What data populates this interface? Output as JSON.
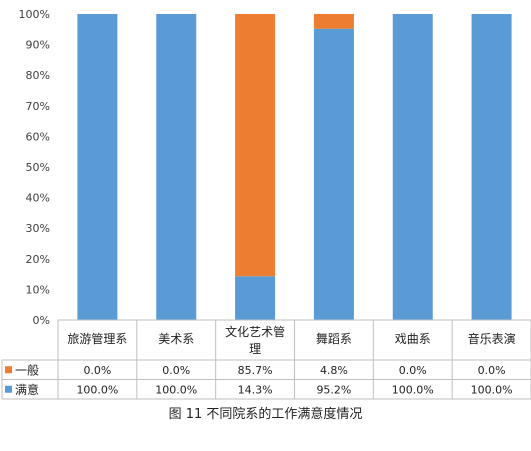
{
  "caption": "图 11  不同院系的工作满意度情况",
  "chart_data": {
    "type": "bar",
    "stacked": true,
    "percent": true,
    "categories": [
      "旅游管理系",
      "美术系",
      "文化艺术管理",
      "舞蹈系",
      "戏曲系",
      "音乐表演"
    ],
    "series": [
      {
        "name": "满意",
        "color": "#5b9bd5",
        "values": [
          100.0,
          100.0,
          14.3,
          95.2,
          100.0,
          100.0
        ]
      },
      {
        "name": "一般",
        "color": "#ed7d31",
        "values": [
          0.0,
          0.0,
          85.7,
          4.8,
          0.0,
          0.0
        ]
      }
    ],
    "table_rows": [
      {
        "name": "一般",
        "color": "#ed7d31",
        "labels": [
          "0.0%",
          "0.0%",
          "85.7%",
          "4.8%",
          "0.0%",
          "0.0%"
        ]
      },
      {
        "name": "满意",
        "color": "#5b9bd5",
        "labels": [
          "100.0%",
          "100.0%",
          "14.3%",
          "95.2%",
          "100.0%",
          "100.0%"
        ]
      }
    ],
    "y_ticks": [
      "0%",
      "10%",
      "20%",
      "30%",
      "40%",
      "50%",
      "60%",
      "70%",
      "80%",
      "90%",
      "100%"
    ],
    "ylim": [
      0,
      100
    ],
    "grid": false,
    "legend": "data-table",
    "title": "",
    "xlabel": "",
    "ylabel": ""
  }
}
